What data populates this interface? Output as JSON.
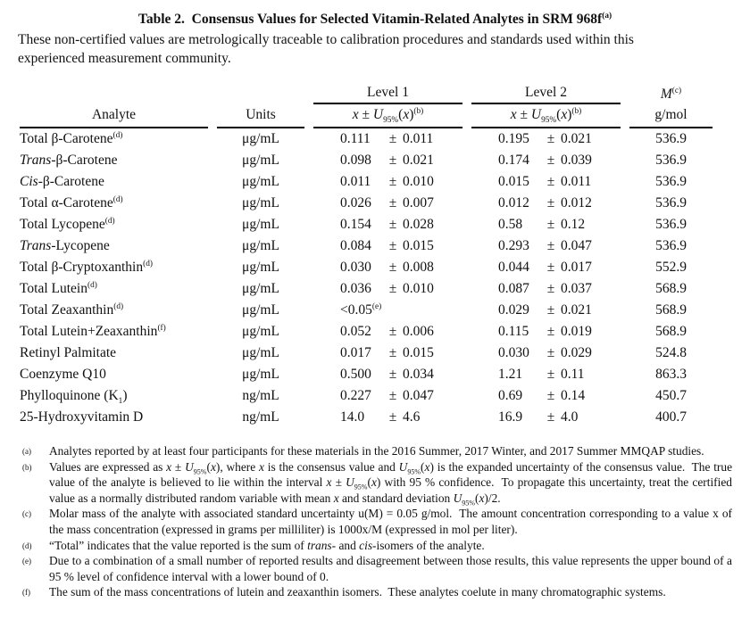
{
  "title": {
    "text": "Table 2.  Consensus Values for Selected Vitamin-Related Analytes in SRM 968f",
    "sup": "(a)"
  },
  "intro_lines": [
    "These non-certified values are metrologically traceable to calibration procedures and standards used within this",
    "experienced measurement community."
  ],
  "table": {
    "analyte_label": "Analyte",
    "units_label": "Units",
    "level1_label": "Level 1",
    "level2_label": "Level 2",
    "molar_mass_symbol": "M",
    "molar_mass_sup": "(c)",
    "molar_mass_units": "g/mol",
    "pm_symbol": "±",
    "value_expr": [
      {
        "t": "x",
        "s": "i"
      },
      {
        "t": " ± "
      },
      {
        "t": "U",
        "s": "i"
      },
      {
        "t": "95%",
        "s": "sub"
      },
      {
        "t": "("
      },
      {
        "t": "x",
        "s": "i"
      },
      {
        "t": ")"
      },
      {
        "t": "(b)",
        "s": "sup"
      }
    ],
    "rows": [
      {
        "analyte": [
          {
            "t": "Total β-Carotene"
          },
          {
            "t": "(d)",
            "s": "sup"
          }
        ],
        "units": "μg/mL",
        "level1": {
          "v": "0.111",
          "u": "0.011"
        },
        "level2": {
          "v": "0.195",
          "u": "0.021"
        },
        "molar_mass": "536.9"
      },
      {
        "analyte": [
          {
            "t": "Trans",
            "s": "i"
          },
          {
            "t": "-β-Carotene"
          }
        ],
        "units": "μg/mL",
        "level1": {
          "v": "0.098",
          "u": "0.021"
        },
        "level2": {
          "v": "0.174",
          "u": "0.039"
        },
        "molar_mass": "536.9"
      },
      {
        "analyte": [
          {
            "t": "Cis",
            "s": "i"
          },
          {
            "t": "-β-Carotene"
          }
        ],
        "units": "μg/mL",
        "level1": {
          "v": "0.011",
          "u": "0.010"
        },
        "level2": {
          "v": "0.015",
          "u": "0.011"
        },
        "molar_mass": "536.9"
      },
      {
        "analyte": [
          {
            "t": "Total α-Carotene"
          },
          {
            "t": "(d)",
            "s": "sup"
          }
        ],
        "units": "μg/mL",
        "level1": {
          "v": "0.026",
          "u": "0.007"
        },
        "level2": {
          "v": "0.012",
          "u": "0.012"
        },
        "molar_mass": "536.9"
      },
      {
        "analyte": [
          {
            "t": "Total Lycopene"
          },
          {
            "t": "(d)",
            "s": "sup"
          }
        ],
        "units": "μg/mL",
        "level1": {
          "v": "0.154",
          "u": "0.028"
        },
        "level2": {
          "v": "0.58",
          "u": "0.12"
        },
        "molar_mass": "536.9"
      },
      {
        "analyte": [
          {
            "t": "Trans",
            "s": "i"
          },
          {
            "t": "-Lycopene"
          }
        ],
        "units": "μg/mL",
        "level1": {
          "v": "0.084",
          "u": "0.015"
        },
        "level2": {
          "v": "0.293",
          "u": "0.047"
        },
        "molar_mass": "536.9"
      },
      {
        "analyte": [
          {
            "t": "Total β-Cryptoxanthin"
          },
          {
            "t": "(d)",
            "s": "sup"
          }
        ],
        "units": "μg/mL",
        "level1": {
          "v": "0.030",
          "u": "0.008"
        },
        "level2": {
          "v": "0.044",
          "u": "0.017"
        },
        "molar_mass": "552.9"
      },
      {
        "analyte": [
          {
            "t": "Total Lutein"
          },
          {
            "t": "(d)",
            "s": "sup"
          }
        ],
        "units": "μg/mL",
        "level1": {
          "v": "0.036",
          "u": "0.010"
        },
        "level2": {
          "v": "0.087",
          "u": "0.037"
        },
        "molar_mass": "568.9"
      },
      {
        "analyte": [
          {
            "t": "Total Zeaxanthin"
          },
          {
            "t": "(d)",
            "s": "sup"
          }
        ],
        "units": "μg/mL",
        "level1": {
          "v": "<0.05",
          "v_sup": "(e)",
          "u": ""
        },
        "level2": {
          "v": "0.029",
          "u": "0.021"
        },
        "molar_mass": "568.9"
      },
      {
        "analyte": [
          {
            "t": "Total Lutein+Zeaxanthin"
          },
          {
            "t": "(f)",
            "s": "sup"
          }
        ],
        "units": "μg/mL",
        "level1": {
          "v": "0.052",
          "u": "0.006"
        },
        "level2": {
          "v": "0.115",
          "u": "0.019"
        },
        "molar_mass": "568.9"
      },
      {
        "analyte": [
          {
            "t": "Retinyl Palmitate"
          }
        ],
        "units": "μg/mL",
        "level1": {
          "v": "0.017",
          "u": "0.015"
        },
        "level2": {
          "v": "0.030",
          "u": "0.029"
        },
        "molar_mass": "524.8"
      },
      {
        "analyte": [
          {
            "t": "Coenzyme Q10"
          }
        ],
        "units": "μg/mL",
        "level1": {
          "v": "0.500",
          "u": "0.034"
        },
        "level2": {
          "v": "1.21",
          "u": "0.11"
        },
        "molar_mass": "863.3"
      },
      {
        "analyte": [
          {
            "t": "Phylloquinone (K"
          },
          {
            "t": "1",
            "s": "sub"
          },
          {
            "t": ")"
          }
        ],
        "units": "ng/mL",
        "level1": {
          "v": "0.227",
          "u": "0.047"
        },
        "level2": {
          "v": "0.69",
          "u": "0.14"
        },
        "molar_mass": "450.7"
      },
      {
        "analyte": [
          {
            "t": "25-Hydroxyvitamin D"
          }
        ],
        "units": "ng/mL",
        "level1": {
          "v": "14.0",
          "u": "4.6"
        },
        "level2": {
          "v": "16.9",
          "u": "4.0"
        },
        "molar_mass": "400.7"
      }
    ]
  },
  "footnotes": [
    {
      "id": "a",
      "marker": "(a)",
      "segments": [
        {
          "t": "Analytes reported by at least four participants for these materials in the 2016 Summer, 2017 Winter, and 2017 Summer MMQAP studies."
        }
      ]
    },
    {
      "id": "b",
      "marker": "(b)",
      "segments": [
        {
          "t": "Values are expressed as "
        },
        {
          "t": "x",
          "s": "i"
        },
        {
          "t": " ± "
        },
        {
          "t": "U",
          "s": "i"
        },
        {
          "t": "95%",
          "s": "sub"
        },
        {
          "t": "("
        },
        {
          "t": "x",
          "s": "i"
        },
        {
          "t": "), where "
        },
        {
          "t": "x",
          "s": "i"
        },
        {
          "t": " is the consensus value and "
        },
        {
          "t": "U",
          "s": "i"
        },
        {
          "t": "95%",
          "s": "sub"
        },
        {
          "t": "("
        },
        {
          "t": "x",
          "s": "i"
        },
        {
          "t": ") is the expanded uncertainty of the consensus value.  The true value of the analyte is believed to lie within the interval "
        },
        {
          "t": "x",
          "s": "i"
        },
        {
          "t": " ± "
        },
        {
          "t": "U",
          "s": "i"
        },
        {
          "t": "95%",
          "s": "sub"
        },
        {
          "t": "("
        },
        {
          "t": "x",
          "s": "i"
        },
        {
          "t": ") with 95 % confidence.  To propagate this uncertainty, treat the certified value as a normally distributed random variable with mean "
        },
        {
          "t": "x",
          "s": "i"
        },
        {
          "t": " and standard deviation "
        },
        {
          "t": "U",
          "s": "i"
        },
        {
          "t": "95%",
          "s": "sub"
        },
        {
          "t": "("
        },
        {
          "t": "x",
          "s": "i"
        },
        {
          "t": ")/2."
        }
      ]
    },
    {
      "id": "c",
      "marker": "(c)",
      "segments": [
        {
          "t": "Molar mass of the analyte with associated standard uncertainty u(M) = 0.05 g/mol.  The amount concentration corresponding to a value x of the mass concentration (expressed in grams per milliliter) is 1000x/M (expressed in mol per liter)."
        }
      ]
    },
    {
      "id": "d",
      "marker": "(d)",
      "segments": [
        {
          "t": "“Total” indicates that the value reported is the sum of "
        },
        {
          "t": "trans",
          "s": "i"
        },
        {
          "t": "- and "
        },
        {
          "t": "cis",
          "s": "i"
        },
        {
          "t": "-isomers of the analyte."
        }
      ]
    },
    {
      "id": "e",
      "marker": "(e)",
      "segments": [
        {
          "t": "Due to a combination of a small number of reported results and disagreement between those results, this value represents the upper bound of a 95 % level of confidence interval with a lower bound of 0."
        }
      ]
    },
    {
      "id": "f",
      "marker": "(f)",
      "segments": [
        {
          "t": "The sum of the mass concentrations of lutein and zeaxanthin isomers.  These analytes coelute in many chromatographic systems."
        }
      ]
    }
  ]
}
